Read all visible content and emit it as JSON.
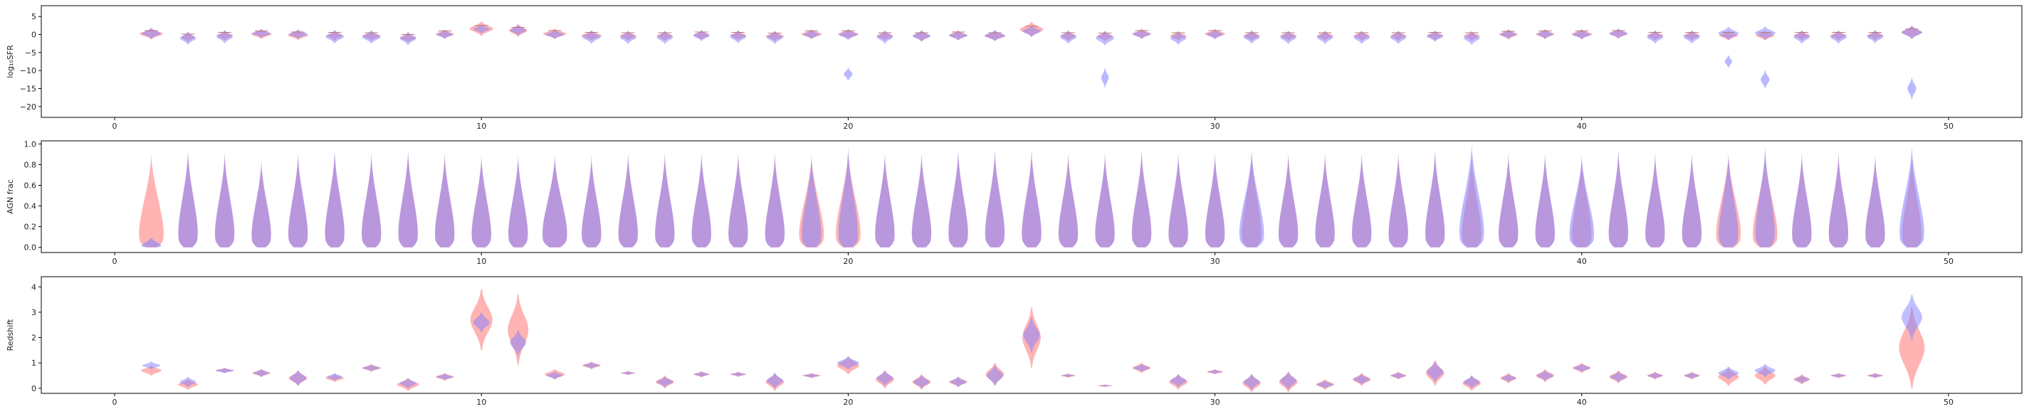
{
  "chart_data": [
    {
      "type": "violin",
      "ylabel": "log₁₀SFR",
      "xlim": [
        -2,
        52
      ],
      "ylim": [
        -23,
        8
      ],
      "xticks": [
        0,
        10,
        20,
        30,
        40,
        50
      ],
      "yticks": [
        -20,
        -15,
        -10,
        -5,
        0,
        5
      ],
      "colors": {
        "series_a": "#ff8080",
        "series_b": "#8080ff",
        "mean_line": "#bb7777"
      },
      "positions": [
        1,
        2,
        3,
        4,
        5,
        6,
        7,
        8,
        9,
        10,
        11,
        12,
        13,
        14,
        15,
        16,
        17,
        18,
        19,
        20,
        21,
        22,
        23,
        24,
        25,
        26,
        27,
        28,
        29,
        30,
        31,
        32,
        33,
        34,
        35,
        36,
        37,
        38,
        39,
        40,
        41,
        42,
        43,
        44,
        45,
        46,
        47,
        48,
        49
      ],
      "series_a": {
        "centers": [
          0.2,
          -0.8,
          -0.3,
          0.1,
          -0.2,
          -0.3,
          -0.4,
          -0.9,
          0.1,
          1.6,
          1.1,
          0.2,
          -0.3,
          -0.4,
          -0.4,
          -0.2,
          -0.3,
          -0.5,
          0.1,
          0.1,
          -0.4,
          -0.4,
          -0.2,
          -0.4,
          1.4,
          -0.4,
          -0.5,
          0.2,
          -0.4,
          0.2,
          -0.4,
          -0.4,
          -0.4,
          -0.4,
          -0.4,
          -0.3,
          -0.4,
          0.0,
          0.1,
          0.1,
          0.2,
          -0.3,
          -0.3,
          -0.3,
          -0.3,
          -0.3,
          -0.3,
          -0.3,
          0.6
        ],
        "spreads": [
          1.5,
          1.3,
          1.3,
          1.3,
          1.3,
          1.3,
          1.3,
          1.3,
          1.2,
          2.0,
          1.7,
          1.4,
          1.3,
          1.3,
          1.3,
          1.3,
          1.3,
          1.3,
          1.3,
          1.3,
          1.3,
          1.5,
          1.3,
          1.3,
          2.0,
          1.3,
          1.3,
          1.3,
          1.3,
          1.3,
          1.3,
          1.3,
          1.3,
          1.3,
          1.3,
          1.3,
          1.3,
          1.3,
          1.3,
          1.3,
          1.3,
          1.3,
          1.3,
          1.3,
          1.3,
          1.3,
          1.3,
          1.3,
          1.7
        ],
        "widths": [
          0.32,
          0.18,
          0.22,
          0.28,
          0.28,
          0.22,
          0.25,
          0.22,
          0.25,
          0.32,
          0.25,
          0.32,
          0.28,
          0.22,
          0.22,
          0.22,
          0.22,
          0.25,
          0.28,
          0.28,
          0.22,
          0.22,
          0.25,
          0.28,
          0.32,
          0.22,
          0.22,
          0.25,
          0.22,
          0.28,
          0.22,
          0.22,
          0.22,
          0.22,
          0.22,
          0.22,
          0.22,
          0.25,
          0.25,
          0.28,
          0.25,
          0.22,
          0.22,
          0.25,
          0.25,
          0.22,
          0.22,
          0.22,
          0.28
        ]
      },
      "series_b": {
        "centers": [
          0.3,
          -1.0,
          -0.6,
          0.3,
          0.1,
          -0.6,
          -0.7,
          -1.1,
          0.0,
          1.5,
          1.2,
          0.0,
          -0.7,
          -0.8,
          -0.8,
          -0.3,
          -0.6,
          -0.8,
          0.0,
          0.0,
          -0.7,
          -0.4,
          -0.3,
          -0.3,
          0.9,
          -0.7,
          -1.0,
          0.1,
          -1.0,
          0.0,
          -0.7,
          -0.8,
          -0.8,
          -0.8,
          -0.8,
          -0.5,
          -1.0,
          0.1,
          0.1,
          0.0,
          0.3,
          -0.7,
          -0.7,
          0.3,
          0.4,
          -0.7,
          -0.7,
          -0.6,
          0.6
        ],
        "spreads": [
          1.5,
          1.8,
          1.8,
          1.2,
          1.3,
          1.8,
          1.8,
          1.8,
          1.2,
          1.2,
          1.5,
          1.2,
          1.8,
          1.8,
          1.8,
          1.5,
          1.8,
          1.8,
          1.2,
          1.5,
          1.8,
          1.5,
          1.3,
          1.5,
          1.5,
          1.8,
          2.0,
          1.3,
          1.8,
          1.3,
          1.8,
          1.8,
          1.8,
          1.8,
          1.8,
          1.5,
          1.8,
          1.3,
          1.3,
          1.3,
          1.3,
          1.8,
          1.8,
          1.8,
          1.8,
          1.8,
          1.8,
          1.8,
          1.8
        ],
        "widths": [
          0.25,
          0.22,
          0.22,
          0.25,
          0.25,
          0.25,
          0.25,
          0.22,
          0.22,
          0.22,
          0.22,
          0.25,
          0.25,
          0.22,
          0.22,
          0.22,
          0.22,
          0.22,
          0.22,
          0.25,
          0.22,
          0.25,
          0.25,
          0.28,
          0.25,
          0.22,
          0.25,
          0.25,
          0.22,
          0.22,
          0.22,
          0.22,
          0.22,
          0.22,
          0.22,
          0.22,
          0.22,
          0.22,
          0.22,
          0.25,
          0.25,
          0.22,
          0.22,
          0.28,
          0.28,
          0.22,
          0.22,
          0.22,
          0.28
        ],
        "tails": [
          {
            "x": 20,
            "y": -11,
            "h": 1.8,
            "w": 0.12
          },
          {
            "x": 27,
            "y": -12,
            "h": 2.8,
            "w": 0.1
          },
          {
            "x": 44,
            "y": -7.5,
            "h": 1.8,
            "w": 0.1
          },
          {
            "x": 45,
            "y": -12.5,
            "h": 2.5,
            "w": 0.12
          },
          {
            "x": 49,
            "y": -15,
            "h": 3.0,
            "w": 0.12
          }
        ]
      }
    },
    {
      "type": "violin",
      "ylabel": "AGN frac",
      "xlim": [
        -2,
        52
      ],
      "ylim": [
        -0.05,
        1.03
      ],
      "xticks": [
        0,
        10,
        20,
        30,
        40,
        50
      ],
      "yticks": [
        0.0,
        0.2,
        0.4,
        0.6,
        0.8,
        1.0
      ],
      "colors": {
        "series_a": "#ff8080",
        "series_b": "#8080ff"
      },
      "positions": [
        1,
        2,
        3,
        4,
        5,
        6,
        7,
        8,
        9,
        10,
        11,
        12,
        13,
        14,
        15,
        16,
        17,
        18,
        19,
        20,
        21,
        22,
        23,
        24,
        25,
        26,
        27,
        28,
        29,
        30,
        31,
        32,
        33,
        34,
        35,
        36,
        37,
        38,
        39,
        40,
        41,
        42,
        43,
        44,
        45,
        46,
        47,
        48,
        49
      ],
      "tops_a": [
        0.92,
        0.95,
        0.92,
        0.85,
        0.92,
        0.95,
        0.92,
        0.95,
        0.92,
        0.9,
        0.9,
        0.9,
        0.9,
        0.92,
        0.92,
        0.92,
        0.92,
        0.92,
        0.9,
        0.95,
        0.92,
        0.92,
        0.95,
        0.95,
        0.95,
        0.92,
        0.92,
        0.95,
        0.92,
        0.92,
        0.95,
        0.92,
        0.92,
        0.92,
        0.92,
        0.95,
        0.9,
        0.92,
        0.92,
        0.9,
        0.95,
        0.92,
        0.92,
        0.92,
        0.92,
        0.92,
        0.92,
        0.9,
        0.9
      ],
      "tops_b": [
        0.1,
        0.95,
        0.92,
        0.85,
        0.92,
        0.95,
        0.92,
        0.95,
        0.92,
        0.9,
        0.9,
        0.9,
        0.9,
        0.92,
        0.92,
        0.92,
        0.92,
        0.92,
        0.9,
        0.98,
        0.92,
        0.92,
        0.95,
        0.95,
        0.95,
        0.92,
        0.92,
        0.95,
        0.92,
        0.92,
        0.95,
        0.92,
        0.92,
        0.92,
        0.92,
        0.95,
        1.02,
        0.92,
        0.92,
        0.9,
        0.95,
        0.92,
        0.92,
        0.92,
        1.0,
        0.92,
        0.92,
        0.9,
        1.0
      ],
      "wide_a": [
        1,
        12,
        19,
        20,
        44,
        45
      ],
      "wide_b": [
        12,
        31,
        37,
        40,
        49
      ]
    },
    {
      "type": "violin",
      "ylabel": "Redshift",
      "xlim": [
        -2,
        52
      ],
      "ylim": [
        -0.2,
        4.4
      ],
      "xticks": [
        0,
        10,
        20,
        30,
        40,
        50
      ],
      "yticks": [
        0,
        1,
        2,
        3,
        4
      ],
      "colors": {
        "series_a": "#ff8080",
        "series_b": "#8080ff"
      },
      "positions": [
        1,
        2,
        3,
        4,
        5,
        6,
        7,
        8,
        9,
        10,
        11,
        12,
        13,
        14,
        15,
        16,
        17,
        18,
        19,
        20,
        21,
        22,
        23,
        24,
        25,
        26,
        27,
        28,
        29,
        30,
        31,
        32,
        33,
        34,
        35,
        36,
        37,
        38,
        39,
        40,
        41,
        42,
        43,
        44,
        45,
        46,
        47,
        48,
        49
      ],
      "series_a": {
        "centers": [
          0.7,
          0.15,
          0.7,
          0.6,
          0.4,
          0.4,
          0.8,
          0.15,
          0.45,
          2.7,
          2.3,
          0.55,
          0.9,
          0.6,
          0.25,
          0.55,
          0.55,
          0.25,
          0.5,
          0.9,
          0.35,
          0.25,
          0.25,
          0.55,
          2.0,
          0.5,
          0.1,
          0.8,
          0.25,
          0.65,
          0.2,
          0.25,
          0.15,
          0.35,
          0.5,
          0.6,
          0.2,
          0.4,
          0.5,
          0.8,
          0.45,
          0.5,
          0.5,
          0.45,
          0.5,
          0.35,
          0.5,
          0.5,
          1.6
        ],
        "spreads": [
          0.2,
          0.2,
          0.1,
          0.15,
          0.3,
          0.15,
          0.15,
          0.25,
          0.15,
          1.2,
          1.4,
          0.2,
          0.15,
          0.08,
          0.25,
          0.12,
          0.1,
          0.35,
          0.1,
          0.35,
          0.35,
          0.3,
          0.2,
          0.45,
          1.2,
          0.08,
          0.05,
          0.2,
          0.3,
          0.1,
          0.35,
          0.4,
          0.2,
          0.25,
          0.15,
          0.5,
          0.3,
          0.2,
          0.25,
          0.2,
          0.25,
          0.15,
          0.15,
          0.35,
          0.35,
          0.2,
          0.1,
          0.1,
          1.6
        ],
        "widths": [
          0.28,
          0.28,
          0.25,
          0.25,
          0.25,
          0.25,
          0.25,
          0.3,
          0.25,
          0.3,
          0.28,
          0.28,
          0.25,
          0.2,
          0.25,
          0.22,
          0.22,
          0.25,
          0.25,
          0.3,
          0.25,
          0.25,
          0.25,
          0.25,
          0.25,
          0.2,
          0.2,
          0.25,
          0.25,
          0.22,
          0.25,
          0.25,
          0.25,
          0.25,
          0.22,
          0.25,
          0.25,
          0.22,
          0.25,
          0.25,
          0.25,
          0.22,
          0.22,
          0.28,
          0.28,
          0.22,
          0.22,
          0.22,
          0.35
        ]
      },
      "series_b": {
        "centers": [
          0.9,
          0.25,
          0.7,
          0.6,
          0.4,
          0.45,
          0.8,
          0.2,
          0.45,
          2.6,
          1.8,
          0.5,
          0.9,
          0.6,
          0.25,
          0.55,
          0.55,
          0.3,
          0.5,
          1.0,
          0.4,
          0.25,
          0.25,
          0.5,
          2.1,
          0.5,
          0.1,
          0.8,
          0.3,
          0.65,
          0.25,
          0.3,
          0.15,
          0.35,
          0.5,
          0.65,
          0.25,
          0.4,
          0.5,
          0.8,
          0.45,
          0.5,
          0.5,
          0.6,
          0.7,
          0.35,
          0.5,
          0.5,
          2.8
        ],
        "spreads": [
          0.15,
          0.2,
          0.1,
          0.15,
          0.3,
          0.15,
          0.12,
          0.2,
          0.12,
          0.4,
          0.5,
          0.15,
          0.12,
          0.06,
          0.2,
          0.1,
          0.08,
          0.3,
          0.08,
          0.25,
          0.3,
          0.25,
          0.2,
          0.4,
          0.7,
          0.06,
          0.04,
          0.15,
          0.25,
          0.08,
          0.3,
          0.35,
          0.15,
          0.2,
          0.12,
          0.4,
          0.25,
          0.15,
          0.2,
          0.15,
          0.2,
          0.12,
          0.12,
          0.25,
          0.25,
          0.15,
          0.08,
          0.08,
          0.9
        ],
        "widths": [
          0.25,
          0.22,
          0.25,
          0.22,
          0.22,
          0.22,
          0.25,
          0.22,
          0.22,
          0.22,
          0.22,
          0.22,
          0.22,
          0.18,
          0.22,
          0.2,
          0.2,
          0.22,
          0.22,
          0.3,
          0.22,
          0.22,
          0.22,
          0.22,
          0.22,
          0.18,
          0.18,
          0.22,
          0.22,
          0.2,
          0.22,
          0.22,
          0.22,
          0.22,
          0.2,
          0.22,
          0.22,
          0.2,
          0.22,
          0.22,
          0.22,
          0.2,
          0.2,
          0.28,
          0.28,
          0.2,
          0.2,
          0.2,
          0.28
        ]
      }
    }
  ]
}
